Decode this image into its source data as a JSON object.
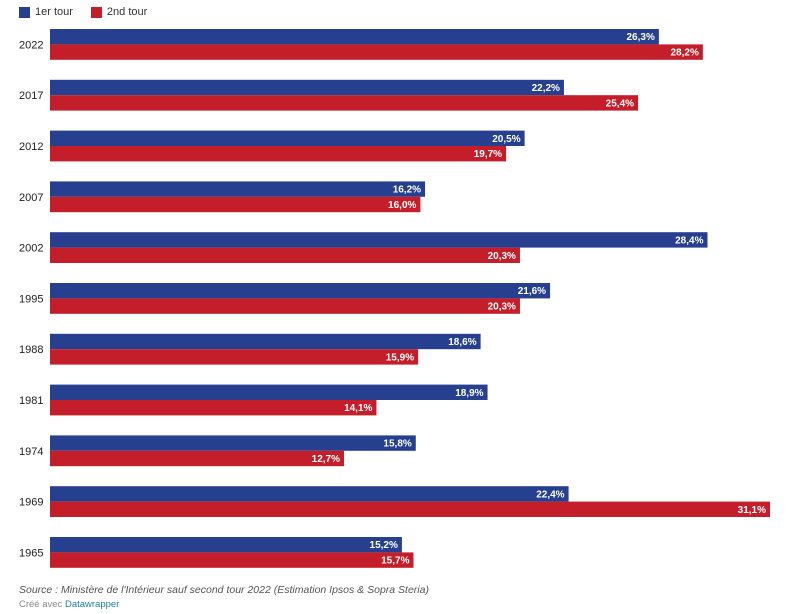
{
  "chart_data": {
    "type": "bar",
    "orientation": "horizontal",
    "categories": [
      "2022",
      "2017",
      "2012",
      "2007",
      "2002",
      "1995",
      "1988",
      "1981",
      "1974",
      "1969",
      "1965"
    ],
    "series": [
      {
        "name": "1er tour",
        "color": "#263f8e",
        "values": [
          26.3,
          22.2,
          20.5,
          16.2,
          28.4,
          21.6,
          18.6,
          18.9,
          15.8,
          22.4,
          15.2
        ],
        "labels": [
          "26,3%",
          "22,2%",
          "20,5%",
          "16,2%",
          "28,4%",
          "21,6%",
          "18,6%",
          "18,9%",
          "15,8%",
          "22,4%",
          "15,2%"
        ]
      },
      {
        "name": "2nd tour",
        "color": "#c41e2a",
        "values": [
          28.2,
          25.4,
          19.7,
          16.0,
          20.3,
          20.3,
          15.9,
          14.1,
          12.7,
          31.1,
          15.7
        ],
        "labels": [
          "28,2%",
          "25,4%",
          "19,7%",
          "16,0%",
          "20,3%",
          "20,3%",
          "15,9%",
          "14,1%",
          "12,7%",
          "31,1%",
          "15,7%"
        ]
      }
    ],
    "xlim": [
      0,
      31.1
    ],
    "legend_position": "top-left",
    "grid": false
  },
  "footer": {
    "source": "Source : Ministère de l'Intérieur sauf second tour 2022 (Estimation Ipsos & Sopra Steria)",
    "credit_prefix": "Créé avec",
    "credit_brand": "Datawrapper"
  }
}
